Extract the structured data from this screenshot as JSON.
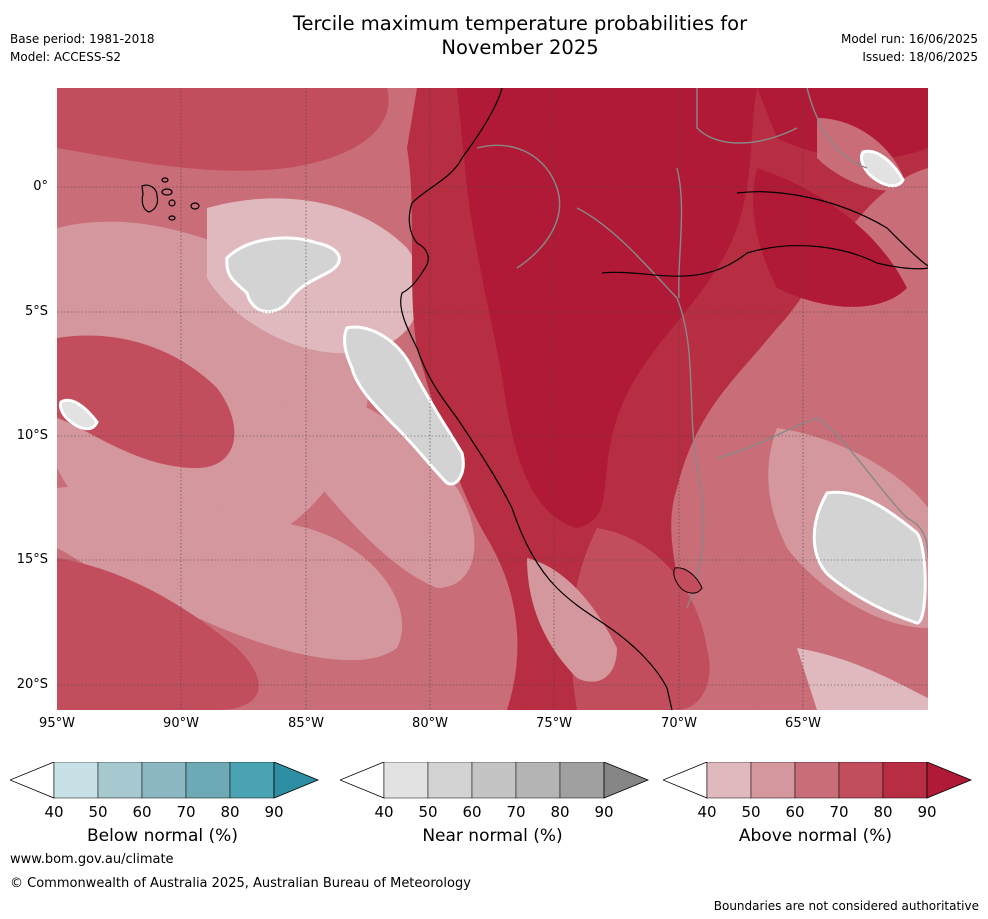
{
  "header": {
    "base_period": "Base period: 1981-2018",
    "model": "Model: ACCESS-S2",
    "title_line1": "Tercile maximum temperature probabilities for",
    "title_line2": "November 2025",
    "model_run": "Model run: 16/06/2025",
    "issued": "Issued: 18/06/2025"
  },
  "map": {
    "lat_labels": [
      "0°",
      "5°S",
      "10°S",
      "15°S",
      "20°S"
    ],
    "lon_labels": [
      "95°W",
      "90°W",
      "85°W",
      "80°W",
      "75°W",
      "70°W",
      "65°W"
    ],
    "colors": {
      "above": [
        "#dfb9bd",
        "#d4979d",
        "#c96d78",
        "#c24e5d",
        "#b72d42",
        "#b01a36"
      ],
      "near": [
        "#e2e2e2",
        "#d3d3d3",
        "#c4c4c4"
      ],
      "ocean_base": "#c96d78",
      "land_base": "#b72d42"
    }
  },
  "colorbars": [
    {
      "id": "below",
      "title": "Below normal (%)",
      "ticks": [
        "40",
        "50",
        "60",
        "70",
        "80",
        "90"
      ],
      "colors": [
        "#ffffff",
        "#c7e1e6",
        "#a6c8cf",
        "#8ab7c2",
        "#6eaab6",
        "#4aa3b2",
        "#2e8ea3"
      ]
    },
    {
      "id": "near",
      "title": "Near normal (%)",
      "ticks": [
        "40",
        "50",
        "60",
        "70",
        "80",
        "90"
      ],
      "colors": [
        "#ffffff",
        "#e2e2e2",
        "#d3d3d3",
        "#c4c4c4",
        "#b4b4b4",
        "#a0a0a0",
        "#858585"
      ]
    },
    {
      "id": "above",
      "title": "Above normal (%)",
      "ticks": [
        "40",
        "50",
        "60",
        "70",
        "80",
        "90"
      ],
      "colors": [
        "#ffffff",
        "#dfb9bd",
        "#d4979d",
        "#c96d78",
        "#c24e5d",
        "#b72d42",
        "#b01a36"
      ]
    }
  ],
  "footer": {
    "website": "www.bom.gov.au/climate",
    "copyright": "© Commonwealth of Australia 2025, Australian Bureau of Meteorology",
    "disclaimer": "Boundaries are not considered authoritative"
  }
}
